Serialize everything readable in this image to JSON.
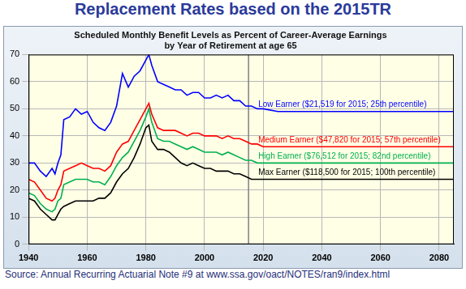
{
  "chart_data": {
    "type": "line",
    "title": "Replacement Rates based on the 2015TR",
    "subtitle": [
      "Scheduled Monthly Benefit Levels as Percent of Career-Average Earnings",
      "by Year of Retirement at age 65"
    ],
    "source": "Source: Annual Recurring Actuarial Note #9 at www.ssa.gov/oact/NOTES/ran9/index.html",
    "x": [
      1940,
      1942,
      1944,
      1946,
      1948,
      1949,
      1950,
      1951,
      1952,
      1954,
      1956,
      1958,
      1960,
      1962,
      1964,
      1966,
      1968,
      1970,
      1972,
      1974,
      1976,
      1978,
      1980,
      1981,
      1982,
      1984,
      1986,
      1988,
      1990,
      1992,
      1994,
      1996,
      1998,
      2000,
      2002,
      2004,
      2006,
      2008,
      2010,
      2012,
      2014,
      2016,
      2018,
      2020,
      2025,
      2030,
      2040,
      2050,
      2060,
      2070,
      2080,
      2085
    ],
    "series": [
      {
        "name": "Low Earner ($21,519 for 2015; 25th percentile)",
        "color": "#0000ff",
        "values": [
          30,
          30,
          27,
          25,
          28,
          26,
          30,
          33,
          46,
          47,
          50,
          48,
          49,
          45,
          43,
          42,
          45,
          51,
          63,
          58,
          62,
          64,
          68,
          70,
          66,
          60,
          59,
          58,
          57,
          57,
          55,
          56,
          56,
          54,
          54,
          55,
          54,
          55,
          53,
          53,
          51,
          51,
          50,
          50,
          49,
          49,
          49,
          49,
          49,
          49,
          49,
          49
        ]
      },
      {
        "name": "Medium Earner ($47,820 for 2015; 57th percentile)",
        "color": "#ff0000",
        "values": [
          24,
          23,
          20,
          17,
          16,
          17,
          20,
          22,
          27,
          28,
          29,
          30,
          29,
          28,
          28,
          27,
          29,
          34,
          37,
          38,
          42,
          46,
          50,
          52,
          48,
          43,
          42,
          42,
          42,
          41,
          40,
          41,
          41,
          40,
          40,
          40,
          39,
          40,
          39,
          39,
          38,
          37,
          37,
          36,
          36,
          36,
          36,
          36,
          36,
          36,
          36,
          36
        ]
      },
      {
        "name": "High Earner ($76,512 for 2015; 82nd percentile)",
        "color": "#00b050",
        "values": [
          19,
          18,
          15,
          13,
          12,
          13,
          16,
          17,
          22,
          23,
          24,
          24,
          24,
          23,
          23,
          22,
          25,
          29,
          32,
          34,
          38,
          42,
          47,
          50,
          45,
          39,
          38,
          38,
          37,
          36,
          35,
          36,
          35,
          34,
          34,
          34,
          33,
          34,
          33,
          32,
          31,
          31,
          30,
          30,
          30,
          30,
          30,
          30,
          30,
          30,
          30,
          30
        ]
      },
      {
        "name": "Max Earner ($118,500 for 2015; 100th percentile)",
        "color": "#000000",
        "values": [
          17,
          16,
          13,
          11,
          9,
          9,
          11,
          13,
          14,
          15,
          16,
          16,
          16,
          16,
          17,
          17,
          19,
          23,
          26,
          28,
          32,
          37,
          43,
          44,
          38,
          35,
          35,
          34,
          32,
          30,
          29,
          30,
          29,
          28,
          28,
          27,
          27,
          27,
          26,
          26,
          25,
          24,
          24,
          24,
          24,
          24,
          24,
          24,
          24,
          24,
          24,
          24
        ]
      }
    ],
    "reference_line": {
      "x": 2015
    },
    "xlim": [
      1940,
      2085
    ],
    "xticks": [
      1940,
      1960,
      1980,
      2000,
      2020,
      2040,
      2060,
      2080
    ],
    "ylim": [
      0,
      70
    ],
    "yticks": [
      0,
      10,
      20,
      30,
      40,
      50,
      60,
      70
    ],
    "grid": true,
    "legend": "none"
  }
}
